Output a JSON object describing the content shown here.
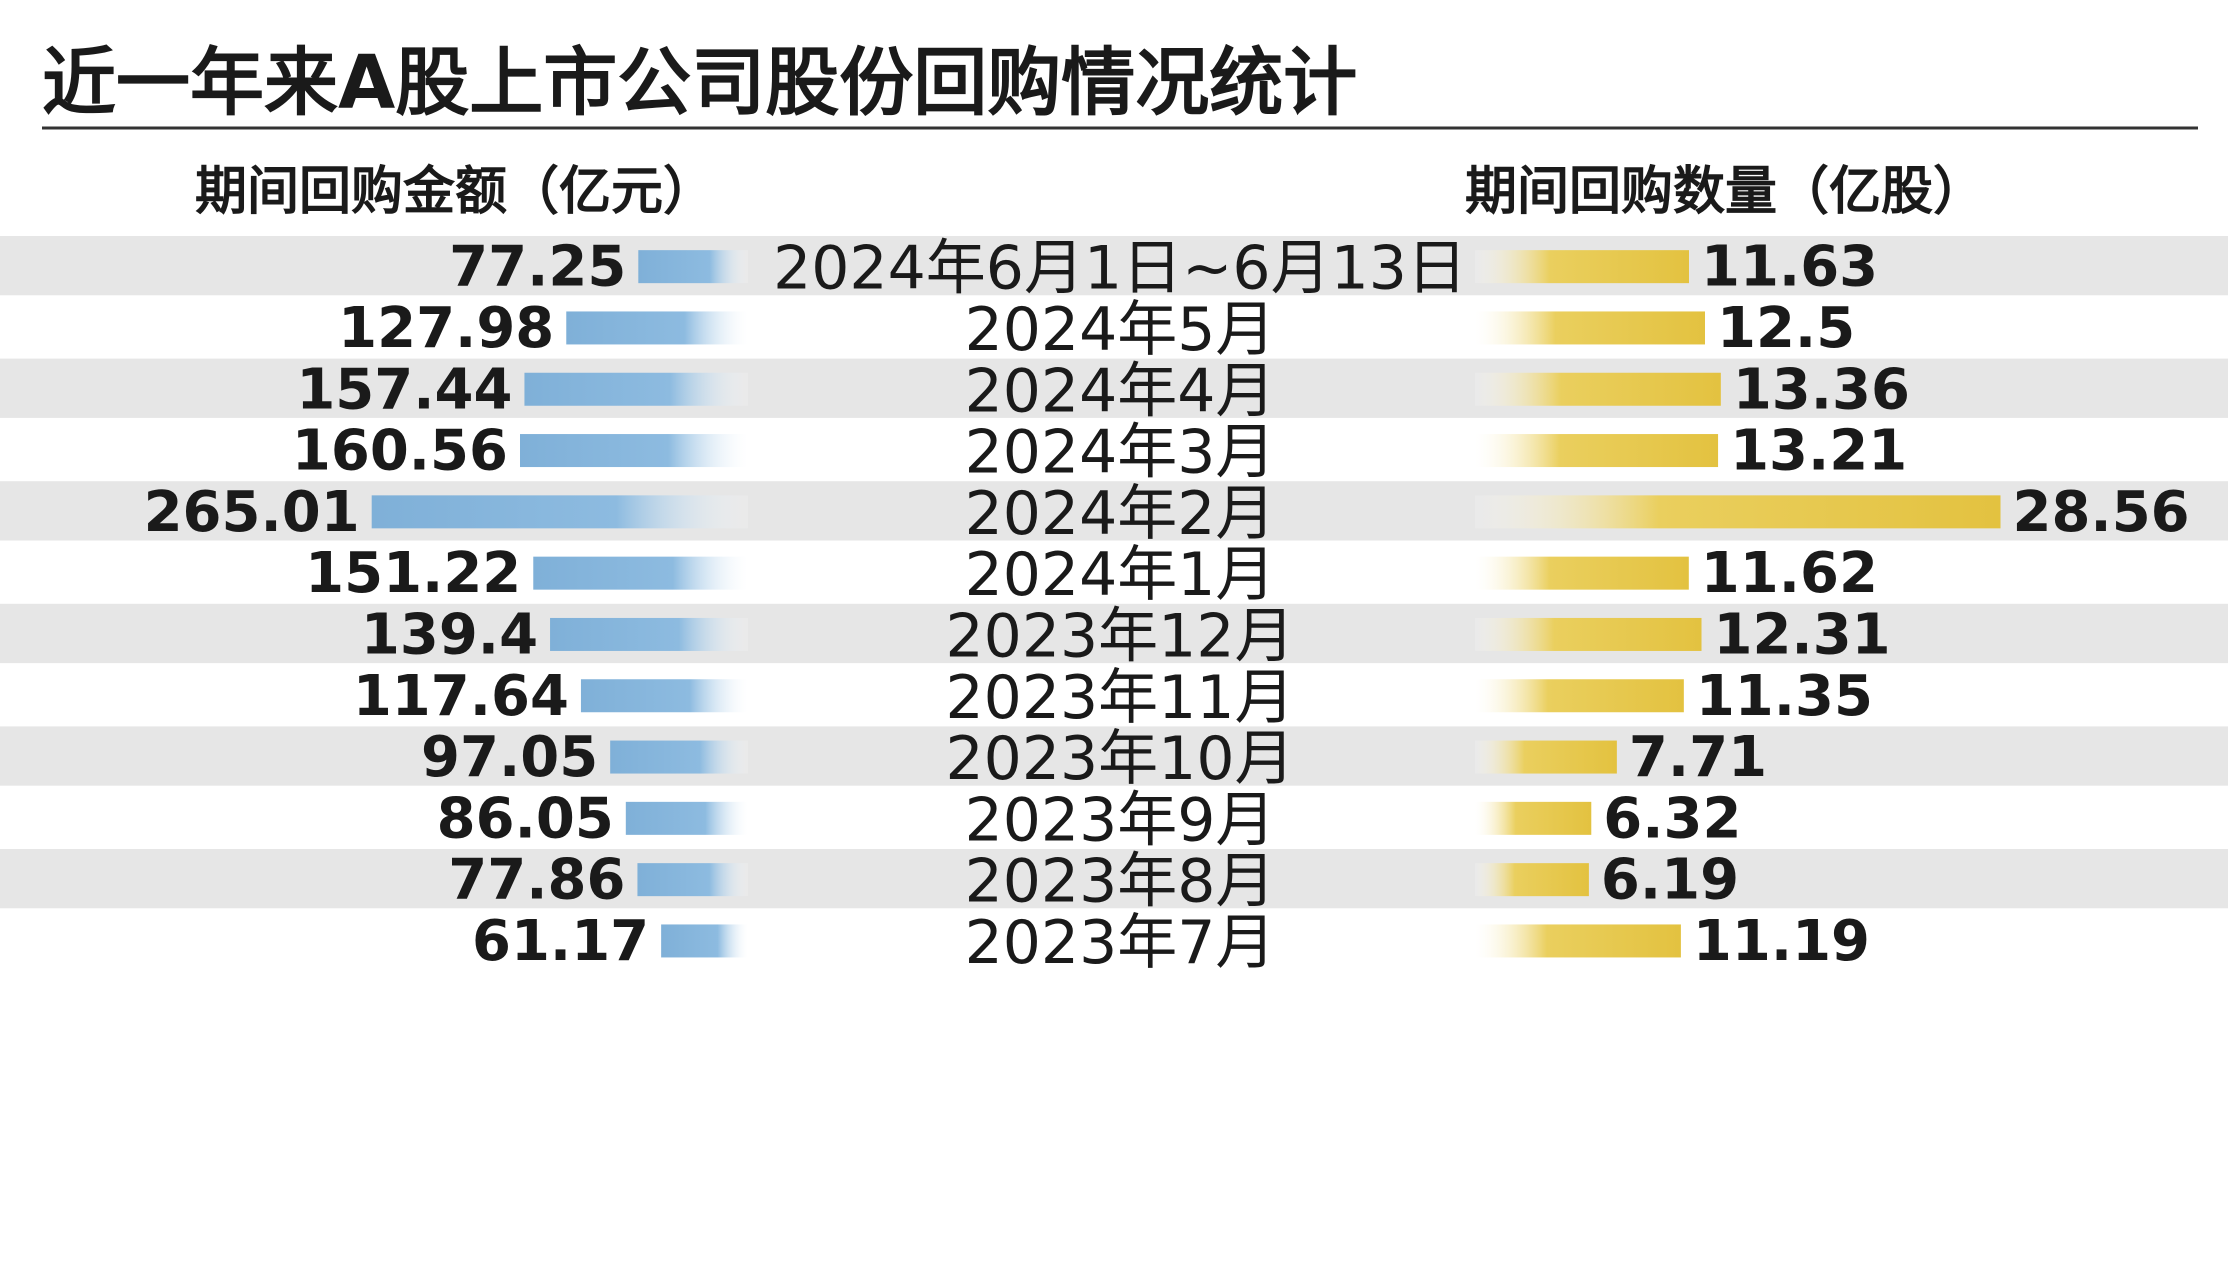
{
  "title": "近一年来A股上市公司股份回购情况统计",
  "colors": {
    "row_stripe": "#e6e6e6",
    "blue_bar": "#7fb0d8",
    "gold_bar": "#e6c74e",
    "text": "#1a1a1a",
    "rule": "#333333"
  },
  "chart_data": {
    "type": "bar",
    "orientation": "horizontal",
    "layout": "butterfly",
    "categories": [
      "2024年6月1日~6月13日",
      "2024年5月",
      "2024年4月",
      "2024年3月",
      "2024年2月",
      "2024年1月",
      "2023年12月",
      "2023年11月",
      "2023年10月",
      "2023年9月",
      "2023年8月",
      "2023年7月"
    ],
    "series": [
      {
        "name": "期间回购金额（亿元）",
        "side": "left",
        "color": "#7fb0d8",
        "values": [
          77.25,
          127.98,
          157.44,
          160.56,
          265.01,
          151.22,
          139.4,
          117.64,
          97.05,
          86.05,
          77.86,
          61.17
        ],
        "labels": [
          "77.25",
          "127.98",
          "157.44",
          "160.56",
          "265.01",
          "151.22",
          "139.4",
          "117.64",
          "97.05",
          "86.05",
          "77.86",
          "61.17"
        ]
      },
      {
        "name": "期间回购数量（亿股）",
        "side": "right",
        "color": "#e6c74e",
        "values": [
          11.63,
          12.5,
          13.36,
          13.21,
          28.56,
          11.62,
          12.31,
          11.35,
          7.71,
          6.32,
          6.19,
          11.19
        ],
        "labels": [
          "11.63",
          "12.5",
          "13.36",
          "13.21",
          "28.56",
          "11.62",
          "12.31",
          "11.35",
          "7.71",
          "6.32",
          "6.19",
          "11.19"
        ]
      }
    ],
    "grid": false,
    "legend": "column headers"
  }
}
